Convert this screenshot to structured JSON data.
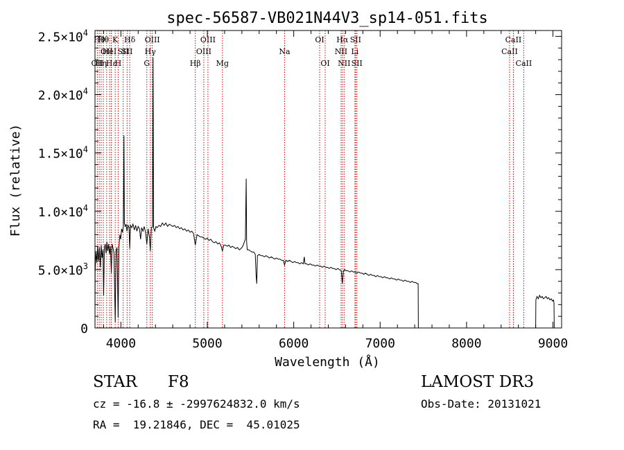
{
  "chart_data": {
    "type": "line",
    "title": "spec-56587-VB021N44V3_sp14-051.fits",
    "xlabel": "Wavelength (Å)",
    "ylabel": "Flux (relative)",
    "xlim": [
      3700,
      9100
    ],
    "ylim": [
      0,
      25500
    ],
    "xticks": [
      4000,
      5000,
      6000,
      7000,
      8000,
      9000
    ],
    "xtick_labels": [
      "4000",
      "5000",
      "6000",
      "7000",
      "8000",
      "9000"
    ],
    "yticks": [
      0,
      5000,
      10000,
      15000,
      20000,
      25000
    ],
    "ytick_labels": [
      {
        "mant": "0",
        "exp": ""
      },
      {
        "mant": "5.0×10",
        "exp": "3"
      },
      {
        "mant": "1.0×10",
        "exp": "4"
      },
      {
        "mant": "1.5×10",
        "exp": "4"
      },
      {
        "mant": "2.0×10",
        "exp": "4"
      },
      {
        "mant": "2.5×10",
        "exp": "4"
      }
    ],
    "lines": [
      {
        "w": 3727,
        "label": "OII",
        "row": 2
      },
      {
        "w": 3750,
        "label": "Hθ",
        "row": 0
      },
      {
        "w": 3771,
        "label": "Hη",
        "row": 2
      },
      {
        "w": 3797,
        "label": "Hθ",
        "row": 0
      },
      {
        "w": 3835,
        "label": "OII",
        "row": 1
      },
      {
        "w": 3869,
        "label": "HeI",
        "row": 1
      },
      {
        "w": 3889,
        "label": "Hε",
        "row": 2
      },
      {
        "w": 3934,
        "label": "K",
        "row": 0
      },
      {
        "w": 3968,
        "label": "H",
        "row": 2
      },
      {
        "w": 4026,
        "label": "SII",
        "row": 1
      },
      {
        "w": 4072,
        "label": "SII",
        "row": 1
      },
      {
        "w": 4102,
        "label": "Hδ",
        "row": 0
      },
      {
        "w": 4300,
        "label": "G",
        "row": 2
      },
      {
        "w": 4340,
        "label": "Hγ",
        "row": 1
      },
      {
        "w": 4363,
        "label": "OIII",
        "row": 0
      },
      {
        "w": 4861,
        "label": "Hβ",
        "row": 2
      },
      {
        "w": 4959,
        "label": "OIII",
        "row": 1
      },
      {
        "w": 5007,
        "label": "OIII",
        "row": 0
      },
      {
        "w": 5175,
        "label": "Mg",
        "row": 2
      },
      {
        "w": 5894,
        "label": "Na",
        "row": 1
      },
      {
        "w": 6300,
        "label": "OI",
        "row": 0
      },
      {
        "w": 6364,
        "label": "OI",
        "row": 2
      },
      {
        "w": 6548,
        "label": "NII",
        "row": 1
      },
      {
        "w": 6563,
        "label": "Hα",
        "row": 0
      },
      {
        "w": 6583,
        "label": "NII",
        "row": 2
      },
      {
        "w": 6708,
        "label": "Li",
        "row": 1
      },
      {
        "w": 6716,
        "label": "SII",
        "row": 0
      },
      {
        "w": 6731,
        "label": "SII",
        "row": 2
      },
      {
        "w": 8498,
        "label": "CaII",
        "row": 1
      },
      {
        "w": 8542,
        "label": "CaII",
        "row": 0
      },
      {
        "w": 8662,
        "label": "CaII",
        "row": 2
      }
    ],
    "spectrum": [
      [
        3700,
        0
      ],
      [
        3702,
        4800
      ],
      [
        3712,
        6600
      ],
      [
        3722,
        5600
      ],
      [
        3732,
        7000
      ],
      [
        3742,
        5700
      ],
      [
        3752,
        6900
      ],
      [
        3762,
        5200
      ],
      [
        3772,
        7100
      ],
      [
        3782,
        6000
      ],
      [
        3792,
        6700
      ],
      [
        3800,
        2800
      ],
      [
        3808,
        6800
      ],
      [
        3818,
        7200
      ],
      [
        3828,
        6400
      ],
      [
        3838,
        7400
      ],
      [
        3848,
        6600
      ],
      [
        3858,
        7200
      ],
      [
        3868,
        6300
      ],
      [
        3878,
        7000
      ],
      [
        3889,
        4700
      ],
      [
        3898,
        7200
      ],
      [
        3910,
        6800
      ],
      [
        3920,
        6400
      ],
      [
        3934,
        500
      ],
      [
        3944,
        6600
      ],
      [
        3955,
        6900
      ],
      [
        3968,
        900
      ],
      [
        3978,
        6900
      ],
      [
        3988,
        8000
      ],
      [
        3998,
        7600
      ],
      [
        4008,
        8500
      ],
      [
        4018,
        8200
      ],
      [
        4028,
        8700
      ],
      [
        4035,
        16500
      ],
      [
        4040,
        9000
      ],
      [
        4050,
        8700
      ],
      [
        4060,
        8900
      ],
      [
        4070,
        8300
      ],
      [
        4082,
        8800
      ],
      [
        4094,
        8600
      ],
      [
        4102,
        6800
      ],
      [
        4112,
        8800
      ],
      [
        4125,
        8600
      ],
      [
        4140,
        8900
      ],
      [
        4155,
        8400
      ],
      [
        4170,
        8800
      ],
      [
        4185,
        8300
      ],
      [
        4200,
        8700
      ],
      [
        4215,
        8500
      ],
      [
        4228,
        7600
      ],
      [
        4240,
        8600
      ],
      [
        4255,
        8300
      ],
      [
        4270,
        8700
      ],
      [
        4285,
        8200
      ],
      [
        4300,
        7200
      ],
      [
        4315,
        8500
      ],
      [
        4330,
        7800
      ],
      [
        4340,
        6600
      ],
      [
        4352,
        8600
      ],
      [
        4366,
        8700
      ],
      [
        4372,
        23200
      ],
      [
        4378,
        8600
      ],
      [
        4392,
        8300
      ],
      [
        4406,
        8700
      ],
      [
        4420,
        8600
      ],
      [
        4440,
        8800
      ],
      [
        4460,
        8700
      ],
      [
        4480,
        9000
      ],
      [
        4500,
        8800
      ],
      [
        4520,
        9000
      ],
      [
        4540,
        8700
      ],
      [
        4560,
        8900
      ],
      [
        4580,
        8800
      ],
      [
        4600,
        8700
      ],
      [
        4620,
        8800
      ],
      [
        4640,
        8600
      ],
      [
        4660,
        8700
      ],
      [
        4680,
        8500
      ],
      [
        4700,
        8600
      ],
      [
        4720,
        8400
      ],
      [
        4740,
        8500
      ],
      [
        4760,
        8300
      ],
      [
        4780,
        8400
      ],
      [
        4800,
        8200
      ],
      [
        4820,
        8300
      ],
      [
        4840,
        8100
      ],
      [
        4861,
        7100
      ],
      [
        4880,
        8000
      ],
      [
        4900,
        7900
      ],
      [
        4920,
        7800
      ],
      [
        4940,
        7800
      ],
      [
        4960,
        7700
      ],
      [
        4980,
        7600
      ],
      [
        5000,
        7700
      ],
      [
        5020,
        7500
      ],
      [
        5040,
        7600
      ],
      [
        5060,
        7400
      ],
      [
        5080,
        7300
      ],
      [
        5100,
        7400
      ],
      [
        5120,
        7200
      ],
      [
        5140,
        7300
      ],
      [
        5160,
        7000
      ],
      [
        5175,
        6600
      ],
      [
        5190,
        7100
      ],
      [
        5210,
        7100
      ],
      [
        5230,
        7000
      ],
      [
        5250,
        7100
      ],
      [
        5270,
        6900
      ],
      [
        5290,
        7000
      ],
      [
        5310,
        6900
      ],
      [
        5330,
        6800
      ],
      [
        5350,
        6900
      ],
      [
        5370,
        6700
      ],
      [
        5390,
        6800
      ],
      [
        5410,
        7000
      ],
      [
        5425,
        7300
      ],
      [
        5440,
        7600
      ],
      [
        5450,
        12800
      ],
      [
        5455,
        7400
      ],
      [
        5462,
        6700
      ],
      [
        5480,
        6700
      ],
      [
        5500,
        6600
      ],
      [
        5520,
        6500
      ],
      [
        5540,
        6500
      ],
      [
        5555,
        6300
      ],
      [
        5565,
        4500
      ],
      [
        5572,
        3800
      ],
      [
        5580,
        6200
      ],
      [
        5600,
        6300
      ],
      [
        5620,
        6200
      ],
      [
        5640,
        6200
      ],
      [
        5660,
        6100
      ],
      [
        5680,
        6200
      ],
      [
        5700,
        6100
      ],
      [
        5720,
        6000
      ],
      [
        5740,
        6100
      ],
      [
        5760,
        6000
      ],
      [
        5780,
        5900
      ],
      [
        5800,
        6000
      ],
      [
        5820,
        5900
      ],
      [
        5840,
        5900
      ],
      [
        5860,
        5800
      ],
      [
        5880,
        5800
      ],
      [
        5894,
        5400
      ],
      [
        5910,
        5800
      ],
      [
        5930,
        5700
      ],
      [
        5950,
        5800
      ],
      [
        5970,
        5700
      ],
      [
        5990,
        5600
      ],
      [
        6010,
        5700
      ],
      [
        6030,
        5600
      ],
      [
        6050,
        5600
      ],
      [
        6070,
        5500
      ],
      [
        6090,
        5600
      ],
      [
        6110,
        5500
      ],
      [
        6122,
        6100
      ],
      [
        6130,
        5500
      ],
      [
        6150,
        5500
      ],
      [
        6170,
        5400
      ],
      [
        6190,
        5500
      ],
      [
        6210,
        5400
      ],
      [
        6230,
        5400
      ],
      [
        6250,
        5300
      ],
      [
        6270,
        5400
      ],
      [
        6290,
        5300
      ],
      [
        6310,
        5300
      ],
      [
        6330,
        5200
      ],
      [
        6350,
        5300
      ],
      [
        6370,
        5200
      ],
      [
        6390,
        5200
      ],
      [
        6410,
        5100
      ],
      [
        6430,
        5200
      ],
      [
        6450,
        5100
      ],
      [
        6470,
        5100
      ],
      [
        6490,
        5000
      ],
      [
        6510,
        5100
      ],
      [
        6530,
        5000
      ],
      [
        6550,
        4900
      ],
      [
        6563,
        3800
      ],
      [
        6575,
        4900
      ],
      [
        6590,
        5000
      ],
      [
        6610,
        4900
      ],
      [
        6630,
        4900
      ],
      [
        6650,
        4800
      ],
      [
        6670,
        4900
      ],
      [
        6690,
        4800
      ],
      [
        6710,
        4800
      ],
      [
        6730,
        4700
      ],
      [
        6750,
        4800
      ],
      [
        6770,
        4700
      ],
      [
        6790,
        4700
      ],
      [
        6810,
        4600
      ],
      [
        6830,
        4700
      ],
      [
        6850,
        4600
      ],
      [
        6870,
        4500
      ],
      [
        6890,
        4600
      ],
      [
        6910,
        4500
      ],
      [
        6930,
        4500
      ],
      [
        6950,
        4400
      ],
      [
        6970,
        4500
      ],
      [
        6990,
        4400
      ],
      [
        7010,
        4400
      ],
      [
        7030,
        4300
      ],
      [
        7050,
        4400
      ],
      [
        7070,
        4300
      ],
      [
        7090,
        4300
      ],
      [
        7110,
        4200
      ],
      [
        7130,
        4300
      ],
      [
        7150,
        4200
      ],
      [
        7170,
        4200
      ],
      [
        7190,
        4100
      ],
      [
        7210,
        4200
      ],
      [
        7230,
        4100
      ],
      [
        7250,
        4100
      ],
      [
        7270,
        4000
      ],
      [
        7290,
        4100
      ],
      [
        7310,
        4000
      ],
      [
        7330,
        4000
      ],
      [
        7350,
        3900
      ],
      [
        7370,
        4000
      ],
      [
        7390,
        3900
      ],
      [
        7410,
        3900
      ],
      [
        7430,
        3800
      ],
      [
        7440,
        3800
      ],
      [
        7442,
        0
      ],
      [
        8800,
        0
      ],
      [
        8802,
        2400
      ],
      [
        8815,
        2700
      ],
      [
        8830,
        2500
      ],
      [
        8845,
        2800
      ],
      [
        8860,
        2600
      ],
      [
        8875,
        2700
      ],
      [
        8890,
        2500
      ],
      [
        8905,
        2600
      ],
      [
        8920,
        2700
      ],
      [
        8935,
        2500
      ],
      [
        8950,
        2600
      ],
      [
        8965,
        2400
      ],
      [
        8980,
        2500
      ],
      [
        8995,
        2300
      ],
      [
        9005,
        2400
      ],
      [
        9012,
        2200
      ],
      [
        9015,
        0
      ]
    ]
  },
  "info": {
    "object_class": "STAR",
    "subclass": "F8",
    "survey": "LAMOST DR3",
    "cz": "cz = -16.8 ± -2997624832.0 km/s",
    "obs_date": "Obs-Date: 20131021",
    "coords": "RA =  19.21846, DEC =  45.01025"
  },
  "colors": {
    "spectrum": "#000000",
    "line_marker": "#cc0000",
    "axis": "#000000"
  }
}
